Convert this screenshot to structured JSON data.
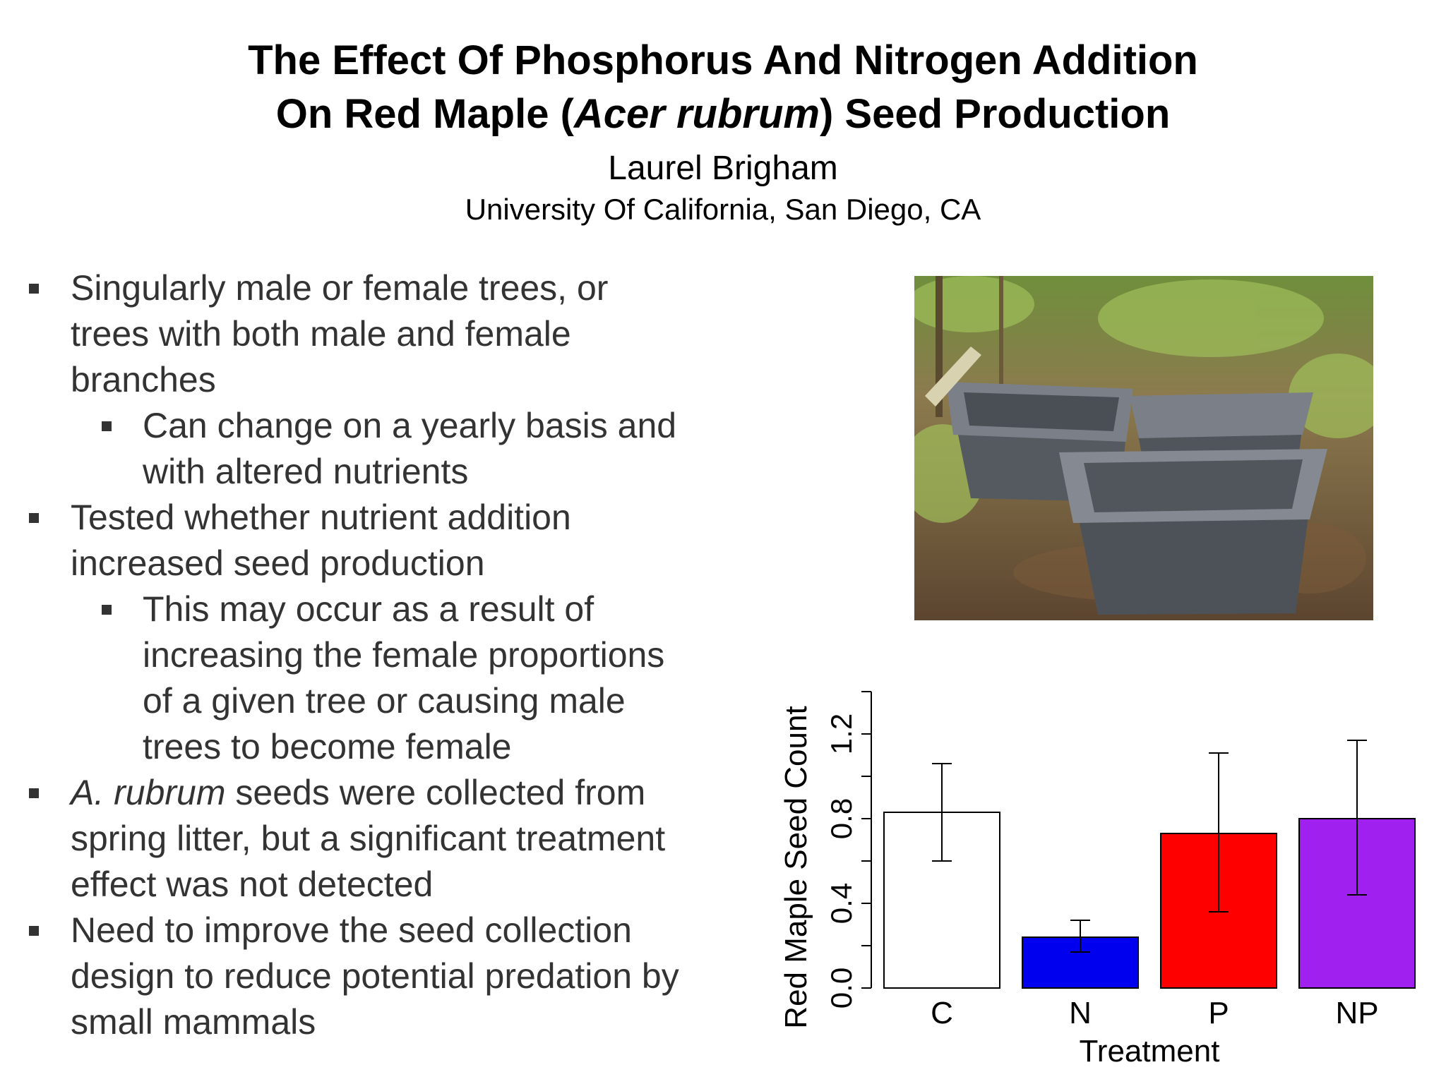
{
  "title": {
    "line1": "The Effect Of Phosphorus And Nitrogen Addition",
    "line2_pre": "On Red Maple (",
    "line2_italic": "Acer rubrum",
    "line2_post": ") Seed Production"
  },
  "author": "Laurel Brigham",
  "affiliation": "University Of California, San Diego, CA",
  "bullets": [
    {
      "level": 1,
      "parts": [
        {
          "text": "Singularly male or female trees, or"
        }
      ]
    },
    {
      "level": 1,
      "parts": [
        {
          "text": "trees with both male and female"
        }
      ]
    },
    {
      "level": 1,
      "parts": [
        {
          "text": "branches"
        }
      ]
    },
    {
      "level": 2,
      "parts": [
        {
          "text": "Can change on a yearly basis and"
        }
      ]
    },
    {
      "level": 2,
      "parts": [
        {
          "text": "with altered nutrients"
        }
      ]
    },
    {
      "level": 1,
      "parts": [
        {
          "text": "Tested whether nutrient addition"
        }
      ]
    },
    {
      "level": 1,
      "parts": [
        {
          "text": "increased seed production"
        }
      ]
    },
    {
      "level": 2,
      "parts": [
        {
          "text": "This may occur as a result of"
        }
      ]
    },
    {
      "level": 2,
      "parts": [
        {
          "text": "increasing the female proportions"
        }
      ]
    },
    {
      "level": 2,
      "parts": [
        {
          "text": "of a given tree or causing male"
        }
      ]
    },
    {
      "level": 2,
      "parts": [
        {
          "text": "trees to become female"
        }
      ]
    },
    {
      "level": 1,
      "parts": [
        {
          "text": "A. rubrum",
          "italic": true
        },
        {
          "text": " seeds were collected from"
        }
      ]
    },
    {
      "level": 1,
      "parts": [
        {
          "text": "spring litter, but a significant treatment"
        }
      ]
    },
    {
      "level": 1,
      "parts": [
        {
          "text": "effect was not detected"
        }
      ]
    },
    {
      "level": 1,
      "parts": [
        {
          "text": "Need to improve the seed collection"
        }
      ]
    },
    {
      "level": 1,
      "parts": [
        {
          "text": "design to reduce potential predation by"
        }
      ]
    },
    {
      "level": 1,
      "parts": [
        {
          "text": "small mammals"
        }
      ]
    }
  ],
  "bullet_starts": [
    0,
    3,
    5,
    7,
    11,
    14
  ],
  "photo": {
    "content": "seed collection baskets on forest floor"
  },
  "chart_data": {
    "type": "bar",
    "categories": [
      "C",
      "N",
      "P",
      "NP"
    ],
    "values": [
      0.83,
      0.24,
      0.73,
      0.8
    ],
    "error_low": [
      0.6,
      0.17,
      0.36,
      0.44
    ],
    "error_high": [
      1.06,
      0.32,
      1.11,
      1.17
    ],
    "colors": [
      "#ffffff",
      "#0000ee",
      "#ff0000",
      "#a020f0"
    ],
    "xlabel": "Treatment",
    "ylabel": "Red Maple Seed Count",
    "yticks": [
      0.0,
      0.4,
      0.8,
      1.2
    ],
    "ytick_labels": [
      "0.0",
      "0.4",
      "0.8",
      "1.2"
    ],
    "ylim": [
      0,
      1.4
    ],
    "grid": false,
    "legend": "none"
  }
}
